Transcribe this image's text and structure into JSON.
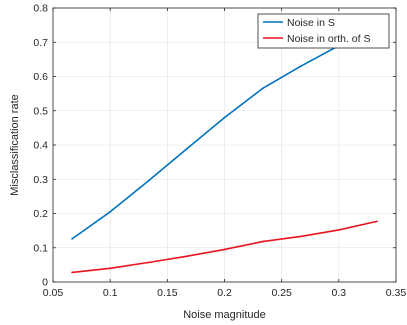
{
  "chart_data": {
    "type": "line",
    "title": "",
    "xlabel": "Noise magnitude",
    "ylabel": "Misclassification rate",
    "xlim": [
      0.05,
      0.35
    ],
    "ylim": [
      0,
      0.8
    ],
    "xticks": [
      0.05,
      0.1,
      0.15,
      0.2,
      0.25,
      0.3,
      0.35
    ],
    "xtick_labels": [
      "0.05",
      "0.1",
      "0.15",
      "0.2",
      "0.25",
      "0.3",
      "0.35"
    ],
    "yticks": [
      0,
      0.1,
      0.2,
      0.3,
      0.4,
      0.5,
      0.6,
      0.7,
      0.8
    ],
    "ytick_labels": [
      "0",
      "0.1",
      "0.2",
      "0.3",
      "0.4",
      "0.5",
      "0.6",
      "0.7",
      "0.8"
    ],
    "grid": true,
    "legend_position": "top-right",
    "series": [
      {
        "name": "Noise in S",
        "color": "#0072BD",
        "x": [
          0.0667,
          0.1,
          0.1333,
          0.1667,
          0.2,
          0.2333,
          0.2667,
          0.3,
          0.3333
        ],
        "y": [
          0.126,
          0.205,
          0.295,
          0.388,
          0.48,
          0.565,
          0.63,
          0.69,
          0.75
        ]
      },
      {
        "name": "Noise in orth. of S",
        "color": "#E8141F",
        "x": [
          0.0667,
          0.1,
          0.1333,
          0.1667,
          0.2,
          0.2333,
          0.2667,
          0.3,
          0.3333
        ],
        "y": [
          0.028,
          0.04,
          0.057,
          0.075,
          0.095,
          0.118,
          0.133,
          0.152,
          0.177
        ]
      }
    ]
  }
}
